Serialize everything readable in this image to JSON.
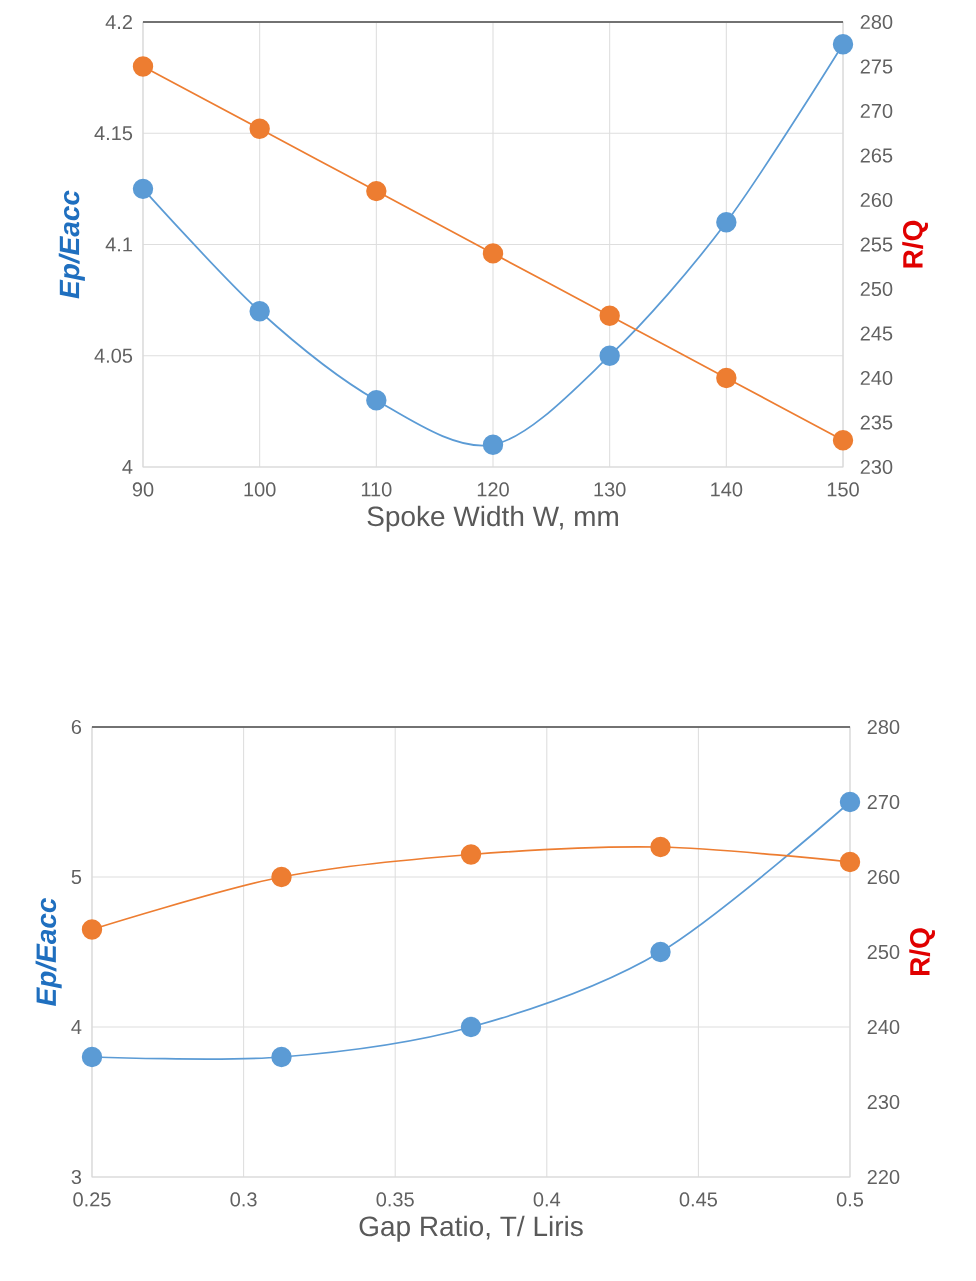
{
  "chart_data": [
    {
      "type": "line",
      "xlabel": "Spoke Width W, mm",
      "ylabel": "Ep/Eacc",
      "y2label": "R/Q",
      "x": [
        90,
        100,
        110,
        120,
        130,
        140,
        150
      ],
      "series": [
        {
          "color": "#5b9bd5",
          "values": [
            4.125,
            4.07,
            4.03,
            4.01,
            4.05,
            4.11,
            4.19
          ]
        },
        {
          "color": "#ed7d31",
          "axis": "y2",
          "values": [
            275,
            268,
            261,
            254,
            247,
            240,
            233
          ]
        }
      ],
      "xlim": [
        90,
        150
      ],
      "xticks": [
        90,
        100,
        110,
        120,
        130,
        140,
        150
      ],
      "ylim": [
        4,
        4.2
      ],
      "yticks": [
        4,
        4.05,
        4.1,
        4.15,
        4.2
      ],
      "y2lim": [
        230,
        280
      ],
      "y2ticks": [
        230,
        235,
        240,
        245,
        250,
        255,
        260,
        265,
        270,
        275,
        280
      ],
      "grid": true,
      "marker": "circle"
    },
    {
      "type": "line",
      "xlabel": "Gap Ratio, T/ Liris",
      "ylabel": "Ep/Eacc",
      "y2label": "R/Q",
      "x": [
        0.25,
        0.3125,
        0.375,
        0.4375,
        0.5
      ],
      "series": [
        {
          "color": "#5b9bd5",
          "values": [
            3.8,
            3.8,
            4.0,
            4.5,
            5.5
          ]
        },
        {
          "color": "#ed7d31",
          "axis": "y2",
          "values": [
            253,
            260,
            263,
            264,
            262
          ]
        }
      ],
      "xlim": [
        0.25,
        0.5
      ],
      "xticks": [
        0.25,
        0.3,
        0.35,
        0.4,
        0.45,
        0.5
      ],
      "ylim": [
        3,
        6
      ],
      "yticks": [
        3,
        4,
        5,
        6
      ],
      "y2lim": [
        220,
        280
      ],
      "y2ticks": [
        220,
        230,
        240,
        250,
        260,
        270,
        280
      ],
      "grid": true,
      "marker": "circle"
    }
  ]
}
